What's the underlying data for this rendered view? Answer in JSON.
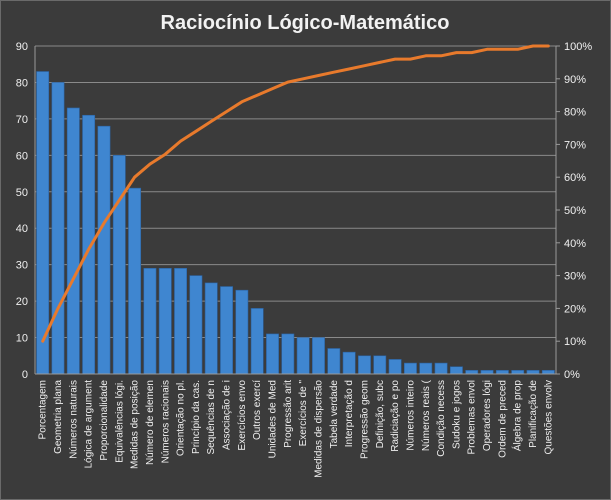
{
  "chart_data": {
    "type": "bar",
    "title": "Raciocínio  Lógico-Matemático",
    "xlabel": "",
    "ylabel": "",
    "ylim": [
      0,
      90
    ],
    "y_ticks": [
      "0",
      "10",
      "20",
      "30",
      "40",
      "50",
      "60",
      "70",
      "80",
      "90"
    ],
    "y2lim": [
      0,
      100
    ],
    "y2_ticks": [
      "0%",
      "10%",
      "20%",
      "30%",
      "40%",
      "50%",
      "60%",
      "70%",
      "80%",
      "90%",
      "100%"
    ],
    "grid": true,
    "legend": "none",
    "bar_color": "#3f86d0",
    "line_color": "#e87a2c",
    "categories": [
      "Porcentagem",
      "Geometria plana",
      "Números naturais",
      "Lógica de argument",
      "Proporcionalidade",
      "Equivalências lógi.",
      "Medidas de posição",
      "Número de elemen",
      "Números racionais",
      "Orientação no pl.",
      "Princípio da cas.",
      "Sequências de n",
      "Associação de i",
      "Exercícios envo",
      "Outros exercí",
      "Unidades de Med",
      "Progressão arit",
      "Exercícios de \"",
      "Medidas de dispersão",
      "Tabela verdade",
      "Interpretação d",
      "Progressão geom",
      "Definição, subc",
      "Radiciação e po",
      "Números inteiro",
      "Números reais (",
      "Condição necess",
      "Sudoku e jogos",
      "Problemas envol",
      "Operadores lógi",
      "Ordem de preced",
      "Álgebra de prop",
      "Planificação de",
      "Questões envolv"
    ],
    "series": [
      {
        "type": "bar",
        "values": [
          83,
          80,
          73,
          71,
          68,
          60,
          51,
          29,
          29,
          29,
          27,
          25,
          24,
          23,
          18,
          11,
          11,
          10,
          10,
          7,
          6,
          5,
          5,
          4,
          3,
          3,
          3,
          2,
          1,
          1,
          1,
          1,
          1,
          1
        ]
      },
      {
        "type": "line",
        "axis": "secondary",
        "values": [
          10,
          20,
          29,
          38,
          46,
          53,
          60,
          64,
          67,
          71,
          74,
          77,
          80,
          83,
          85,
          87,
          89,
          90,
          91,
          92,
          93,
          94,
          95,
          96,
          96,
          97,
          97,
          98,
          98,
          99,
          99,
          99,
          100,
          100
        ]
      }
    ]
  }
}
